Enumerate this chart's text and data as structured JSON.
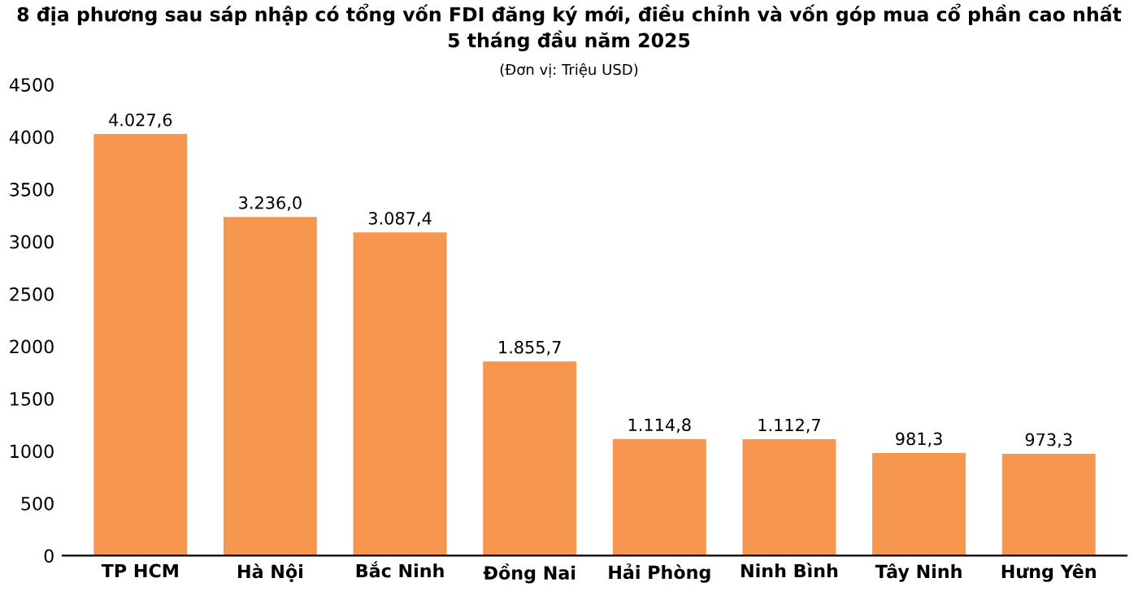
{
  "chart_data": {
    "type": "bar",
    "title": "8 địa phương sau sáp nhập có tổng vốn FDI đăng ký mới, điều chỉnh và vốn góp mua cổ phần cao nhất\n5 tháng đầu năm 2025",
    "subtitle": "(Đơn vị: Triệu USD)",
    "categories": [
      "TP HCM",
      "Hà Nội",
      "Bắc Ninh",
      "Đồng Nai",
      "Hải Phòng",
      "Ninh Bình",
      "Tây Ninh",
      "Hưng Yên"
    ],
    "values": [
      4027.6,
      3236.0,
      3087.4,
      1855.7,
      1114.8,
      1112.7,
      981.3,
      973.3
    ],
    "value_labels": [
      "4.027,6",
      "3.236,0",
      "3.087,4",
      "1.855,7",
      "1.114,8",
      "1.112,7",
      "981,3",
      "973,3"
    ],
    "color": "#f7974f",
    "ylim": [
      0,
      4500
    ],
    "yticks": [
      0,
      500,
      1000,
      1500,
      2000,
      2500,
      3000,
      3500,
      4000,
      4500
    ],
    "grid": false,
    "legend": false
  }
}
